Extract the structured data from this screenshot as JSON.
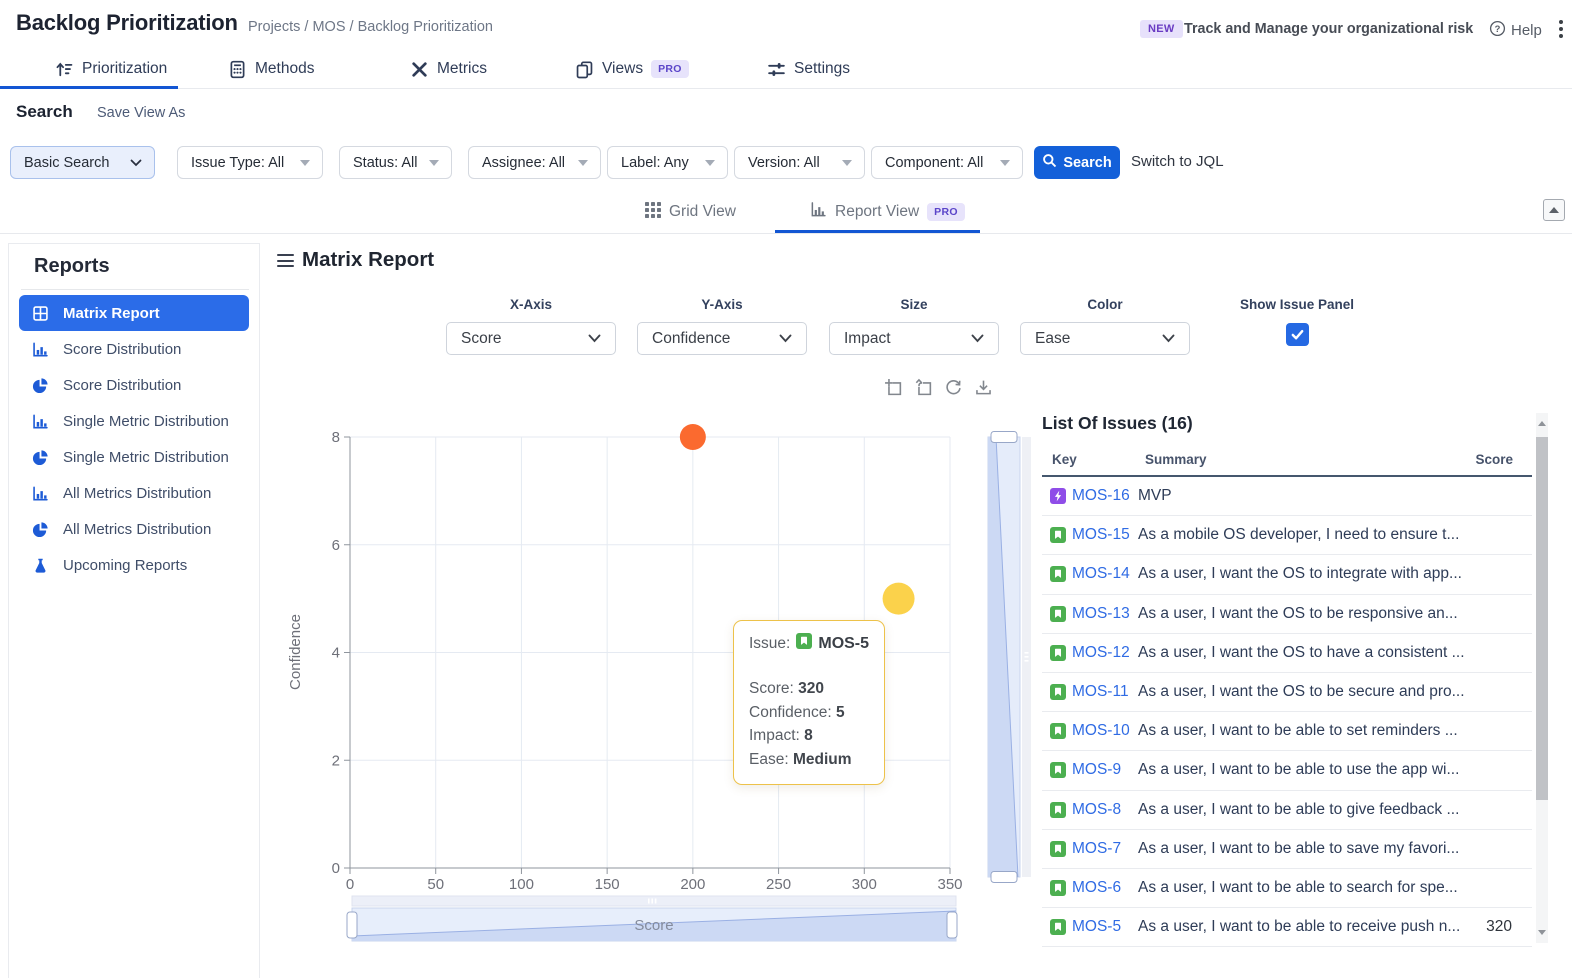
{
  "header": {
    "title": "Backlog Prioritization",
    "breadcrumb": "Projects / MOS / Backlog Prioritization",
    "tabs": [
      {
        "label": "Prioritization",
        "active": true
      },
      {
        "label": "Methods"
      },
      {
        "label": "Metrics"
      },
      {
        "label": "Views",
        "badge": "PRO"
      },
      {
        "label": "Settings"
      }
    ],
    "new_badge": "NEW",
    "promo": "Track and Manage your organizational risk",
    "help": "Help"
  },
  "search_bar": {
    "search_label": "Search",
    "save_view_as": "Save View As",
    "basic_search": "Basic Search",
    "filters": [
      "Issue Type: All",
      "Status: All",
      "Assignee: All",
      "Label: Any",
      "Version: All",
      "Component: All"
    ],
    "search_button": "Search",
    "switch_jql": "Switch to JQL"
  },
  "view_tabs": {
    "grid": "Grid View",
    "report": "Report View",
    "pro": "PRO"
  },
  "sidebar": {
    "title": "Reports",
    "items": [
      {
        "label": "Matrix Report",
        "icon": "matrix-grid-icon",
        "selected": true
      },
      {
        "label": "Score Distribution",
        "icon": "bar-chart-icon"
      },
      {
        "label": "Score Distribution",
        "icon": "pie-chart-icon"
      },
      {
        "label": "Single Metric Distribution",
        "icon": "bar-chart-icon"
      },
      {
        "label": "Single Metric Distribution",
        "icon": "pie-chart-icon"
      },
      {
        "label": "All Metrics Distribution",
        "icon": "bar-chart-icon"
      },
      {
        "label": "All Metrics Distribution",
        "icon": "pie-chart-icon"
      },
      {
        "label": "Upcoming Reports",
        "icon": "flask-icon"
      }
    ]
  },
  "report": {
    "title": "Matrix Report",
    "controls": [
      {
        "label": "X-Axis",
        "value": "Score"
      },
      {
        "label": "Y-Axis",
        "value": "Confidence"
      },
      {
        "label": "Size",
        "value": "Impact"
      },
      {
        "label": "Color",
        "value": "Ease"
      }
    ],
    "show_issue_panel_label": "Show Issue Panel",
    "show_issue_panel_checked": true
  },
  "chart_data": {
    "type": "scatter",
    "xlabel": "Score",
    "ylabel": "Confidence",
    "xlim": [
      0,
      350
    ],
    "ylim": [
      0,
      8
    ],
    "x_ticks": [
      0,
      50,
      100,
      150,
      200,
      250,
      300,
      350
    ],
    "y_ticks": [
      0,
      2,
      4,
      6,
      8
    ],
    "grid": true,
    "points": [
      {
        "issue": "MOS-16",
        "x": 200,
        "y": 8,
        "r": 13,
        "color": "#fb6a2f"
      },
      {
        "issue": "MOS-5",
        "x": 320,
        "y": 5,
        "r": 16,
        "color": "#fbd24b"
      }
    ]
  },
  "tooltip": {
    "issue_label": "Issue:",
    "issue_key": "MOS-5",
    "rows": [
      {
        "label": "Score:",
        "value": "320"
      },
      {
        "label": "Confidence:",
        "value": "5"
      },
      {
        "label": "Impact:",
        "value": "8"
      },
      {
        "label": "Ease:",
        "value": "Medium"
      }
    ]
  },
  "issue_panel": {
    "title": "List Of Issues (16)",
    "columns": [
      "Key",
      "Summary",
      "Score"
    ],
    "rows": [
      {
        "key": "MOS-16",
        "type": "epic",
        "summary": "MVP",
        "score": ""
      },
      {
        "key": "MOS-15",
        "type": "story",
        "summary": "As a mobile OS developer, I need to ensure t...",
        "score": ""
      },
      {
        "key": "MOS-14",
        "type": "story",
        "summary": "As a user, I want the OS to integrate with app...",
        "score": ""
      },
      {
        "key": "MOS-13",
        "type": "story",
        "summary": "As a user, I want the OS to be responsive an...",
        "score": ""
      },
      {
        "key": "MOS-12",
        "type": "story",
        "summary": "As a user, I want the OS to have a consistent ...",
        "score": ""
      },
      {
        "key": "MOS-11",
        "type": "story",
        "summary": "As a user, I want the OS to be secure and pro...",
        "score": ""
      },
      {
        "key": "MOS-10",
        "type": "story",
        "summary": "As a user, I want to be able to set reminders ...",
        "score": ""
      },
      {
        "key": "MOS-9",
        "type": "story",
        "summary": "As a user, I want to be able to use the app wi...",
        "score": ""
      },
      {
        "key": "MOS-8",
        "type": "story",
        "summary": "As a user, I want to be able to give feedback ...",
        "score": ""
      },
      {
        "key": "MOS-7",
        "type": "story",
        "summary": "As a user, I want to be able to save my favori...",
        "score": ""
      },
      {
        "key": "MOS-6",
        "type": "story",
        "summary": "As a user, I want to be able to search for spe...",
        "score": ""
      },
      {
        "key": "MOS-5",
        "type": "story",
        "summary": "As a user, I want to be able to receive push n...",
        "score": "320"
      }
    ]
  }
}
